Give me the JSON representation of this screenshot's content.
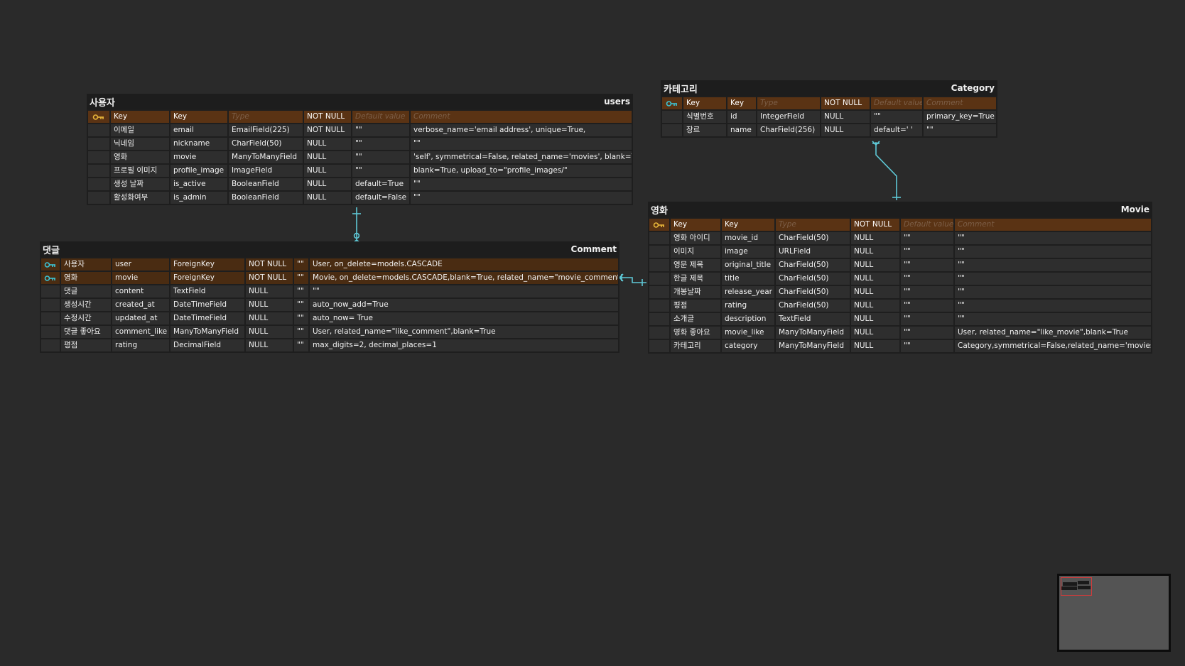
{
  "column_header": {
    "key_label": "Key",
    "key2_label": "Key",
    "type_placeholder": "Type",
    "not_null_label": "NOT NULL",
    "default_placeholder": "Default value",
    "comment_placeholder": "Comment"
  },
  "colors": {
    "background": "#2a2a2a",
    "header_row": "#5a3314",
    "fk_row": "#4a2c12",
    "connector": "#5ec8d6",
    "primary_key_icon": "#e8b63a",
    "foreign_key_icon": "#3cc3d4",
    "minimap_viewport": "#d23b3b"
  },
  "tables": {
    "users": {
      "korean_name": "사용자",
      "name": "users",
      "rows": [
        {
          "key": "이메일",
          "field": "email",
          "type": "EmailField(225)",
          "nullable": "NOT NULL",
          "default": "\"\"",
          "comment": "verbose_name='email address', unique=True,"
        },
        {
          "key": "닉네임",
          "field": "nickname",
          "type": "CharField(50)",
          "nullable": "NULL",
          "default": "\"\"",
          "comment": "\"\""
        },
        {
          "key": "영화",
          "field": "movie",
          "type": "ManyToManyField",
          "nullable": "NULL",
          "default": "\"\"",
          "comment": "'self', symmetrical=False, related_name='movies', blank=True"
        },
        {
          "key": "프로필 이미지",
          "field": "profile_image",
          "type": "ImageField",
          "nullable": "NULL",
          "default": "\"\"",
          "comment": "blank=True, upload_to=\"profile_images/\""
        },
        {
          "key": "생성 날짜",
          "field": "is_active",
          "type": "BooleanField",
          "nullable": "NULL",
          "default": "default=True",
          "comment": "\"\""
        },
        {
          "key": "활성화여부",
          "field": "is_admin",
          "type": "BooleanField",
          "nullable": "NULL",
          "default": "default=False",
          "comment": "\"\""
        }
      ]
    },
    "category": {
      "korean_name": "카테고리",
      "name": "Category",
      "rows": [
        {
          "key": "식별번호",
          "field": "id",
          "type": "IntegerField",
          "nullable": "NULL",
          "default": "\"\"",
          "comment": "primary_key=True"
        },
        {
          "key": "장르",
          "field": "name",
          "type": "CharField(256)",
          "nullable": "NULL",
          "default": "default=' '",
          "comment": "\"\""
        }
      ]
    },
    "comment": {
      "korean_name": "댓글",
      "name": "Comment",
      "rows": [
        {
          "key": "사용자",
          "field": "user",
          "type": "ForeignKey",
          "nullable": "NOT NULL",
          "default": "\"\"",
          "comment": "User, on_delete=models.CASCADE",
          "fk": true
        },
        {
          "key": "영화",
          "field": "movie",
          "type": "ForeignKey",
          "nullable": "NOT NULL",
          "default": "\"\"",
          "comment": "Movie, on_delete=models.CASCADE,blank=True, related_name=\"movie_comment\"",
          "fk": true
        },
        {
          "key": "댓글",
          "field": "content",
          "type": "TextField",
          "nullable": "NULL",
          "default": "\"\"",
          "comment": "\"\""
        },
        {
          "key": "생성시간",
          "field": "created_at",
          "type": "DateTimeField",
          "nullable": "NULL",
          "default": "\"\"",
          "comment": "auto_now_add=True"
        },
        {
          "key": "수정시간",
          "field": "updated_at",
          "type": "DateTimeField",
          "nullable": "NULL",
          "default": "\"\"",
          "comment": "auto_now= True"
        },
        {
          "key": "댓글 좋아요",
          "field": "comment_like",
          "type": "ManyToManyField",
          "nullable": "NULL",
          "default": "\"\"",
          "comment": "User, related_name=\"like_comment\",blank=True"
        },
        {
          "key": "평점",
          "field": "rating",
          "type": "DecimalField",
          "nullable": "NULL",
          "default": "\"\"",
          "comment": "max_digits=2, decimal_places=1"
        }
      ]
    },
    "movie": {
      "korean_name": "영화",
      "name": "Movie",
      "rows": [
        {
          "key": "영화 아이디",
          "field": "movie_id",
          "type": "CharField(50)",
          "nullable": "NULL",
          "default": "\"\"",
          "comment": "\"\""
        },
        {
          "key": "이미지",
          "field": "image",
          "type": "URLField",
          "nullable": "NULL",
          "default": "\"\"",
          "comment": "\"\""
        },
        {
          "key": "영문 제목",
          "field": "original_title",
          "type": "CharField(50)",
          "nullable": "NULL",
          "default": "\"\"",
          "comment": "\"\""
        },
        {
          "key": "한글 제목",
          "field": "title",
          "type": "CharField(50)",
          "nullable": "NULL",
          "default": "\"\"",
          "comment": "\"\""
        },
        {
          "key": "개봉날짜",
          "field": "release_year",
          "type": "CharField(50)",
          "nullable": "NULL",
          "default": "\"\"",
          "comment": "\"\""
        },
        {
          "key": "평점",
          "field": "rating",
          "type": "CharField(50)",
          "nullable": "NULL",
          "default": "\"\"",
          "comment": "\"\""
        },
        {
          "key": "소개글",
          "field": "description",
          "type": "TextField",
          "nullable": "NULL",
          "default": "\"\"",
          "comment": "\"\""
        },
        {
          "key": "영화 좋아요",
          "field": "movie_like",
          "type": "ManyToManyField",
          "nullable": "NULL",
          "default": "\"\"",
          "comment": "User, related_name=\"like_movie\",blank=True"
        },
        {
          "key": "카테고리",
          "field": "category",
          "type": "ManyToManyField",
          "nullable": "NULL",
          "default": "\"\"",
          "comment": "Category,symmetrical=False,related_name='movies'"
        }
      ]
    }
  }
}
